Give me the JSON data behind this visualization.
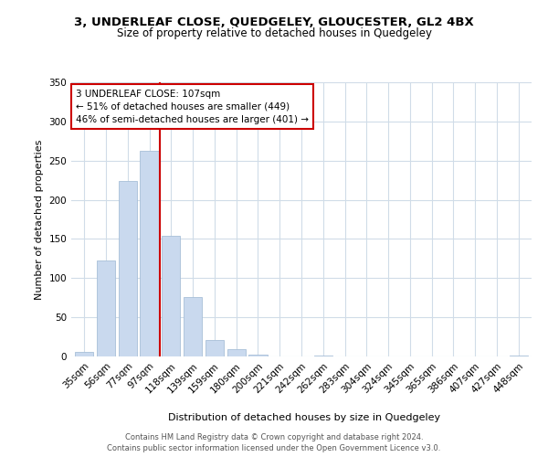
{
  "title": "3, UNDERLEAF CLOSE, QUEDGELEY, GLOUCESTER, GL2 4BX",
  "subtitle": "Size of property relative to detached houses in Quedgeley",
  "bar_labels": [
    "35sqm",
    "56sqm",
    "77sqm",
    "97sqm",
    "118sqm",
    "139sqm",
    "159sqm",
    "180sqm",
    "200sqm",
    "221sqm",
    "242sqm",
    "262sqm",
    "283sqm",
    "304sqm",
    "324sqm",
    "345sqm",
    "365sqm",
    "386sqm",
    "407sqm",
    "427sqm",
    "448sqm"
  ],
  "bar_values": [
    6,
    122,
    224,
    262,
    154,
    76,
    21,
    9,
    2,
    0,
    0,
    1,
    0,
    0,
    0,
    0,
    0,
    0,
    0,
    0,
    1
  ],
  "bar_color": "#c9d9ee",
  "bar_edgecolor": "#a8bfd8",
  "ylabel": "Number of detached properties",
  "xlabel": "Distribution of detached houses by size in Quedgeley",
  "ylim": [
    0,
    350
  ],
  "yticks": [
    0,
    50,
    100,
    150,
    200,
    250,
    300,
    350
  ],
  "redline_x": 3.5,
  "annotation_title": "3 UNDERLEAF CLOSE: 107sqm",
  "annotation_line1": "← 51% of detached houses are smaller (449)",
  "annotation_line2": "46% of semi-detached houses are larger (401) →",
  "annotation_box_color": "#ffffff",
  "annotation_box_edgecolor": "#cc0000",
  "redline_color": "#cc0000",
  "footer1": "Contains HM Land Registry data © Crown copyright and database right 2024.",
  "footer2": "Contains public sector information licensed under the Open Government Licence v3.0.",
  "background_color": "#ffffff",
  "grid_color": "#d0dce8",
  "title_fontsize": 9.5,
  "subtitle_fontsize": 8.5,
  "footer_fontsize": 6.0
}
